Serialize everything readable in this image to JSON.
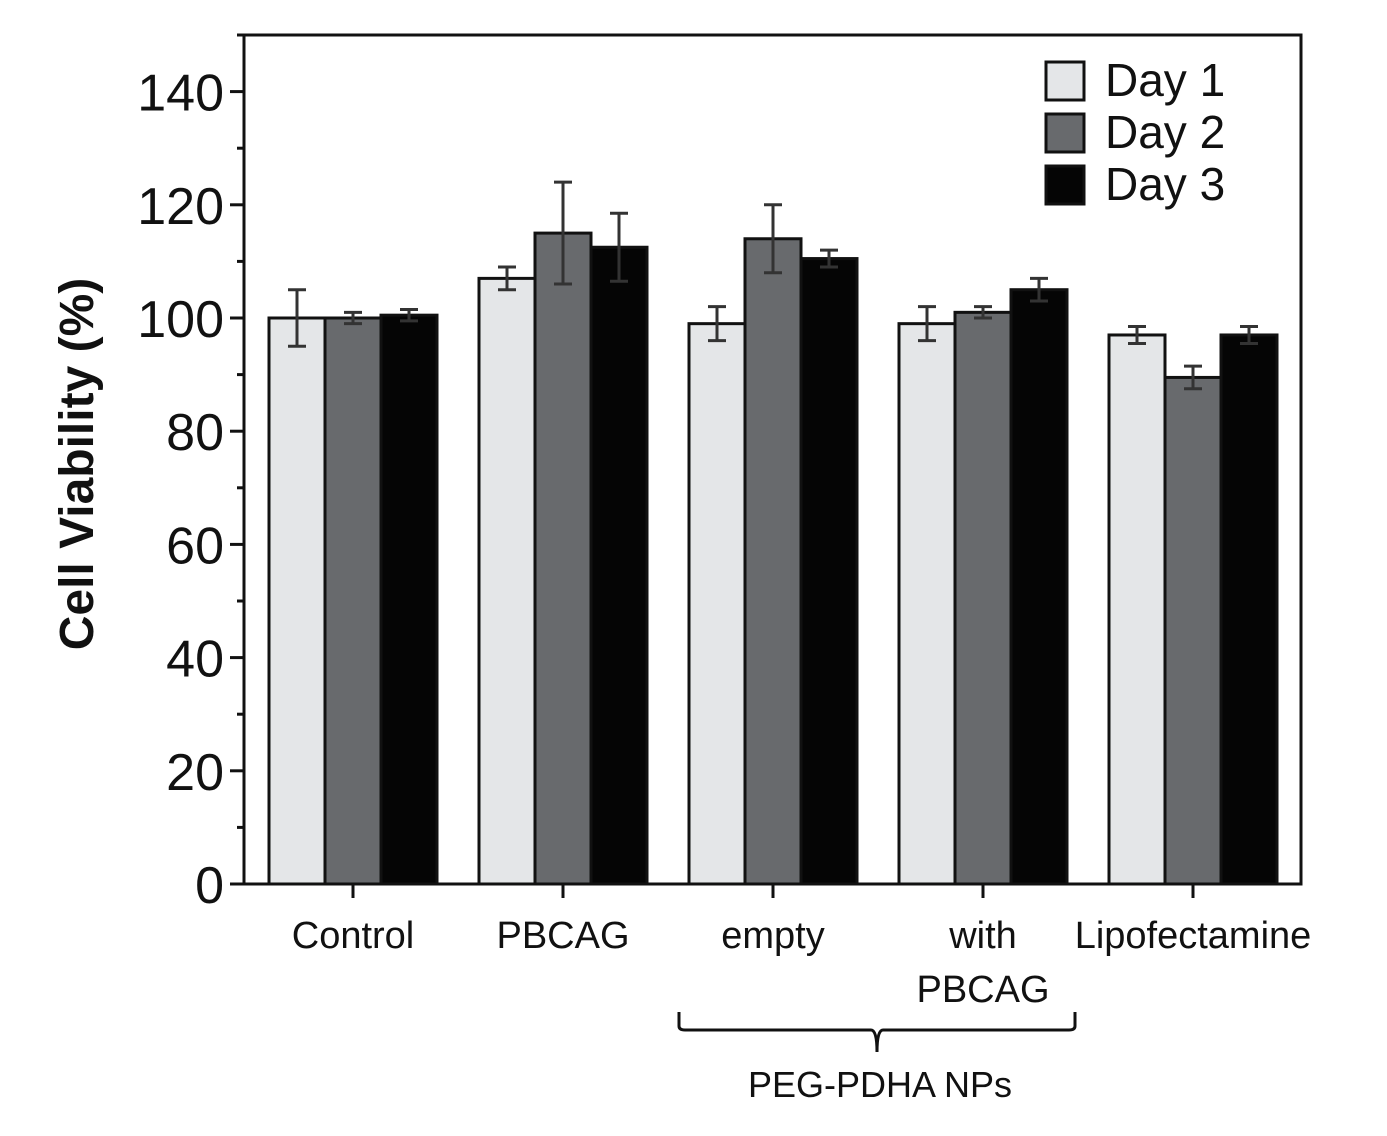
{
  "chart_data": {
    "type": "bar",
    "title": "",
    "xlabel": "",
    "ylabel": "Cell Viability (%)",
    "ylim": [
      0,
      150
    ],
    "yticks": [
      0,
      20,
      40,
      60,
      80,
      100,
      120,
      140
    ],
    "grid": false,
    "legend_position": "top-right",
    "categories": [
      {
        "lines": [
          "Control"
        ]
      },
      {
        "lines": [
          "PBCAG"
        ]
      },
      {
        "lines": [
          "empty"
        ]
      },
      {
        "lines": [
          "with",
          "PBCAG"
        ]
      },
      {
        "lines": [
          "Lipofectamine"
        ]
      }
    ],
    "series": [
      {
        "name": "Day 1",
        "color": "#e4e6e8",
        "values": [
          100,
          107,
          99,
          99,
          97
        ],
        "errors": [
          5,
          2,
          3,
          3,
          1.5
        ]
      },
      {
        "name": "Day 2",
        "color": "#686a6d",
        "values": [
          100,
          115,
          114,
          101,
          89.5
        ],
        "errors": [
          1,
          9,
          6,
          1,
          2
        ]
      },
      {
        "name": "Day 3",
        "color": "#050505",
        "values": [
          100.5,
          112.5,
          110.5,
          105,
          97
        ],
        "errors": [
          1,
          6,
          1.5,
          2,
          1.5
        ]
      }
    ],
    "group_annotation": {
      "label": "PEG-PDHA NPs",
      "category_indices": [
        2,
        3
      ]
    }
  }
}
